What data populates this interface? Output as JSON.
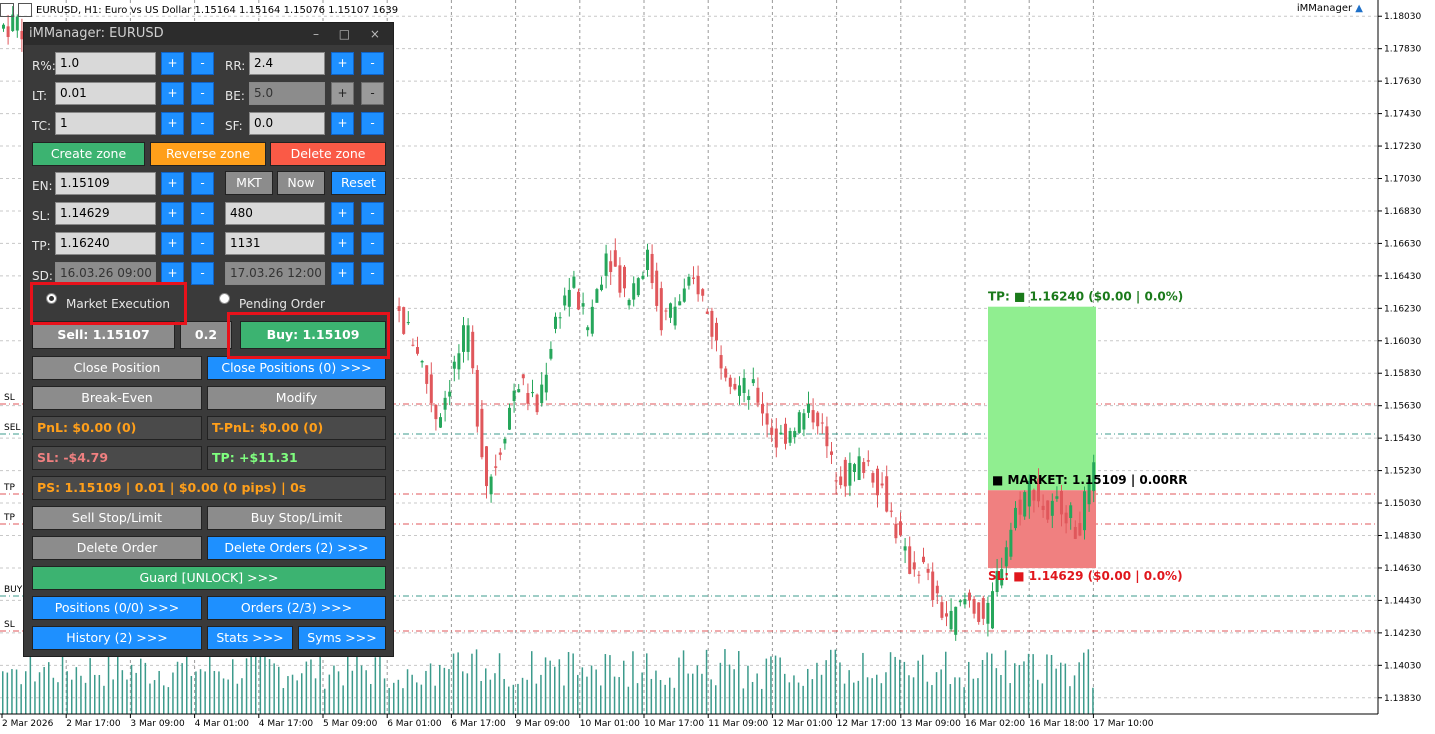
{
  "window": {
    "title": "EURUSD, H1:  Euro vs US Dollar  1.15164 1.15164 1.15076 1.15107  1639",
    "indicator_label": "iMManager"
  },
  "chart_data": {
    "type": "candlestick",
    "y_ticks": [
      "1.18030",
      "1.17830",
      "1.17630",
      "1.17430",
      "1.17230",
      "1.17030",
      "1.16830",
      "1.16630",
      "1.16430",
      "1.16230",
      "1.16030",
      "1.15830",
      "1.15630",
      "1.15430",
      "1.15230",
      "1.15030",
      "1.14830",
      "1.14630",
      "1.14430",
      "1.14230",
      "1.14030",
      "1.13830"
    ],
    "x_ticks": [
      "2 Mar 2026",
      "2 Mar 17:00",
      "3 Mar 09:00",
      "4 Mar 01:00",
      "4 Mar 17:00",
      "5 Mar 09:00",
      "6 Mar 01:00",
      "6 Mar 17:00",
      "9 Mar 09:00",
      "10 Mar 01:00",
      "10 Mar 17:00",
      "11 Mar 09:00",
      "12 Mar 01:00",
      "12 Mar 17:00",
      "13 Mar 09:00",
      "16 Mar 02:00",
      "16 Mar 18:00",
      "17 Mar 10:00"
    ],
    "ylim": [
      1.1373,
      1.1813
    ],
    "left_line_labels": [
      "SL",
      "SEL",
      "TP",
      "TP",
      "BUY",
      "SL"
    ],
    "zone": {
      "tp_label": "TP: ■ 1.16240 ($0.00 | 0.0%)",
      "market_label": "■ MARKET: 1.15109 | 0.00RR",
      "sl_label": "SL: ■ 1.14629 ($0.00 | 0.0%)",
      "tp": 1.1624,
      "entry": 1.15109,
      "sl": 1.14629,
      "tp_color": "#90ee90",
      "sl_color": "#f08080"
    }
  },
  "panel": {
    "title": "iMManager: EURUSD",
    "title_buttons": "– □ ×",
    "rows": {
      "r": {
        "label": "R%:",
        "value": "1.0"
      },
      "rr": {
        "label": "RR:",
        "value": "2.4"
      },
      "lt": {
        "label": "LT:",
        "value": "0.01"
      },
      "be": {
        "label": "BE:",
        "value": "5.0"
      },
      "tc": {
        "label": "TC:",
        "value": "1"
      },
      "sf": {
        "label": "SF:",
        "value": "0.0"
      },
      "en": {
        "label": "EN:",
        "value": "1.15109"
      },
      "sl": {
        "label": "SL:",
        "value": "1.14629",
        "points": "480"
      },
      "tp": {
        "label": "TP:",
        "value": "1.16240",
        "points": "1131"
      },
      "sd": {
        "label": "SD:",
        "value": "16.03.26 09:00",
        "value2": "17.03.26 12:00"
      }
    },
    "plus": "+",
    "minus": "-",
    "buttons": {
      "create_zone": "Create zone",
      "reverse_zone": "Reverse zone",
      "delete_zone": "Delete zone",
      "mkt": "MKT",
      "now": "Now",
      "reset": "Reset",
      "sell": "Sell: 1.15107",
      "lot": "0.2",
      "buy": "Buy: 1.15109",
      "close_position": "Close Position",
      "close_positions": "Close Positions (0) >>>",
      "break_even": "Break-Even",
      "modify": "Modify",
      "sell_stop_limit": "Sell Stop/Limit",
      "buy_stop_limit": "Buy Stop/Limit",
      "delete_order": "Delete Order",
      "delete_orders": "Delete Orders (2) >>>",
      "guard": "Guard [UNLOCK] >>>",
      "positions": "Positions (0/0) >>>",
      "orders": "Orders (2/3) >>>",
      "history": "History (2) >>>",
      "stats": "Stats >>>",
      "syms": "Syms >>>"
    },
    "execution": {
      "market": "Market Execution",
      "pending": "Pending Order",
      "selected": "market"
    },
    "stats": {
      "pnl": "PnL: $0.00 (0)",
      "tpnl": "T-PnL: $0.00 (0)",
      "sl": "SL: -$4.79",
      "tp": "TP: +$11.31",
      "ps": "PS: 1.15109 | 0.01 | $0.00 (0 pips) | 0s"
    },
    "colors": {
      "pnl": "#ff9f1a",
      "sl": "#f08080",
      "tp": "#7fff7f",
      "highlight": "#e8121b"
    }
  }
}
